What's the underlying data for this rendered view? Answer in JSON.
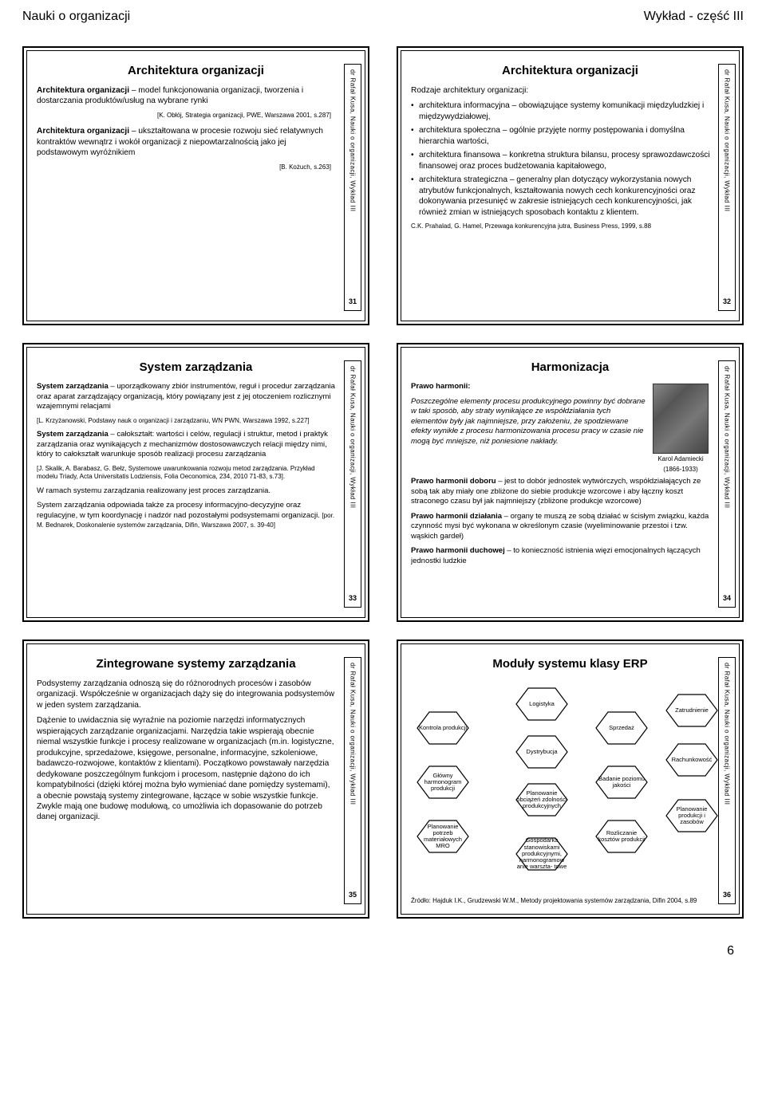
{
  "header": {
    "left": "Nauki o organizacji",
    "right": "Wykład - część III"
  },
  "footer": {
    "page": "6"
  },
  "sidebar_text": "dr Rafał Kusa, Nauki o organizacji, Wykład III",
  "slides": {
    "s31": {
      "num": "31",
      "title": "Architektura organizacji",
      "p1a": "Architektura organizacji",
      "p1b": " – model funkcjonowania organizacji, tworzenia i dostarczania produktów/usług na wybrane rynki",
      "r1": "[K. Obłój, Strategia organizacji, PWE, Warszawa 2001, s.287]",
      "p2a": "Architektura organizacji",
      "p2b": " – ukształtowana w procesie rozwoju sieć relatywnych kontraktów wewnątrz i wokół organizacji z niepowtarzalnością jako jej podstawowym wyróżnikiem",
      "r2": "[B. Kożuch, s.263]"
    },
    "s32": {
      "num": "32",
      "title": "Architektura organizacji",
      "intro": "Rodzaje architektury organizacji:",
      "li1": "architektura informacyjna – obowiązujące systemy komunikacji międzyludzkiej i międzywydziałowej,",
      "li2": "architektura społeczna – ogólnie przyjęte normy postępowania i domyślna hierarchia wartości,",
      "li3": "architektura finansowa – konkretna struktura bilansu, procesy sprawozdawczości finansowej oraz proces budżetowania kapitałowego,",
      "li4": "architektura strategiczna – generalny plan dotyczący wykorzystania nowych atrybutów funkcjonalnych, kształtowania nowych cech konkurencyjności oraz dokonywania przesunięć w zakresie istniejących cech konkurencyjności, jak również zmian w istniejących sposobach kontaktu z klientem.",
      "ref": "C.K. Prahalad, G. Hamel, Przewaga konkurencyjna jutra, Business Press, 1999, s.88"
    },
    "s33": {
      "num": "33",
      "title": "System zarządzania",
      "p1a": "System zarządzania",
      "p1b": " – uporządkowany zbiór instrumentów, reguł i procedur zarządzania oraz aparat zarządzający organizacją, który powiązany jest z jej otoczeniem rozlicznymi wzajemnymi relacjami",
      "r1": "[L. Krzyżanowski, Podstawy nauk o organizacji i zarządzaniu, WN PWN, Warszawa 1992, s.227]",
      "p2a": "System zarządzania",
      "p2b": " – całokształt: wartości i celów, regulacji i struktur, metod i praktyk zarządzania oraz wynikających z mechanizmów dostosowawczych relacji między nimi, który to całokształt warunkuje sposób realizacji procesu zarządzania",
      "r2": "[J. Skalik, A. Barabasz, G. Bełz, Systemowe uwarunkowania rozwoju metod zarządzania. Przykład modelu Triady, Acta Universitatis Lodziensis, Folia Oeconomica, 234, 2010 71-83, s.73].",
      "p3": "W ramach systemu zarządzania realizowany jest proces zarządzania.",
      "p4a": "System zarządzania odpowiada także za procesy informacyjno-decyzyjne oraz regulacyjne, w tym koordynację i nadzór nad pozostałymi podsystemami organizacji. ",
      "p4b": "[por. M. Bednarek, Doskonalenie systemów zarządzania, Difin, Warszawa 2007, s. 39-40]"
    },
    "s34": {
      "num": "34",
      "title": "Harmonizacja",
      "h": "Prawo harmonii:",
      "p1": "Poszczególne elementy procesu produkcyjnego powinny być dobrane w taki sposób, aby straty wynikające ze współdziałania tych elementów były jak najmniejsze, przy założeniu, że spodziewane efekty wynikłe z procesu harmonizowania procesu pracy w czasie nie mogą być mniejsze, niż poniesione nakłady.",
      "cap1": "Karol Adamiecki",
      "cap2": "(1866-1933)",
      "h2": "Prawo harmonii doboru",
      "p2": " – jest to dobór jednostek wytwórczych, współdziałających ze sobą tak aby miały one zbliżone do siebie produkcje wzorcowe i aby łączny koszt straconego czasu był jak najmniejszy (zbliżone produkcje wzorcowe)",
      "h3": "Prawo harmonii działania",
      "p3": " – organy te muszą ze sobą działać w ścisłym związku, każda czynność mysi być wykonana w określonym czasie (wyeliminowanie przestoi i tzw. wąskich gardeł)",
      "h4": "Prawo harmonii duchowej",
      "p4": " – to konieczność istnienia więzi emocjonalnych łączących jednostki ludzkie"
    },
    "s35": {
      "num": "35",
      "title": "Zintegrowane systemy zarządzania",
      "p1": "Podsystemy zarządzania odnoszą się do różnorodnych procesów i zasobów organizacji. Współcześnie w organizacjach dąży się do integrowania podsystemów w jeden system zarządzania.",
      "p2": "Dążenie to uwidacznia się wyraźnie na poziomie narzędzi informatycznych wspierających zarządzanie organizacjami. Narzędzia takie wspierają obecnie niemal wszystkie funkcje i procesy realizowane w organizacjach (m.in. logistyczne, produkcyjne, sprzedażowe, księgowe, personalne, informacyjne, szkoleniowe, badawczo-rozwojowe, kontaktów z klientami). Początkowo powstawały narzędzia dedykowane poszczególnym funkcjom i procesom, następnie dążono do ich kompatybilności (dzięki której można było wymieniać dane pomiędzy systemami), a obecnie powstają systemy zintegrowane, łączące w sobie wszystkie funkcje. Zwykle mają one budowę modułową, co umożliwia ich dopasowanie do potrzeb danej organizacji."
    },
    "s36": {
      "num": "36",
      "title": "Moduły systemu klasy ERP",
      "nodes": {
        "n1": "Kontrola produkcji",
        "n2": "Główny harmonogram produkcji",
        "n3": "Planowanie potrzeb materiałowych MRO",
        "n4": "Logistyka",
        "n5": "Dystrybucja",
        "n6": "Planowanie obciążeń zdolności produkcyjnych",
        "n7": "Gospodarka stanowiskami produkcyjnymi, harmonogramow anie warszta- towe",
        "n8": "Sprzedaż",
        "n9": "Badanie poziomu jakości",
        "n10": "Rozliczanie kosztów produkcji",
        "n11": "Zatrudnienie",
        "n12": "Rachunkowość",
        "n13": "Planowanie produkcji i zasobów"
      },
      "ref": "Źródło: Hajduk I.K., Grudzewski W.M., Metody projektowania systemów zarządzania, Difin 2004, s.89"
    }
  }
}
